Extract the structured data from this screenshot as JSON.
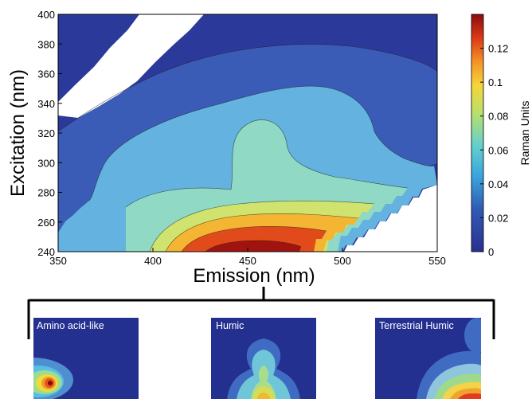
{
  "chart_data": [
    {
      "type": "heatmap",
      "xlabel": "Emission (nm)",
      "ylabel": "Excitation (nm)",
      "xlim": [
        350,
        550
      ],
      "ylim": [
        240,
        400
      ],
      "x_ticks": [
        350,
        400,
        450,
        500,
        550
      ],
      "y_ticks": [
        240,
        260,
        280,
        300,
        320,
        340,
        360,
        380,
        400
      ],
      "colorbar": {
        "label": "Raman Units",
        "range": [
          0,
          0.14
        ],
        "ticks": [
          0,
          0.02,
          0.04,
          0.06,
          0.08,
          0.1,
          0.12
        ],
        "tick_labels": [
          "0",
          "0.02",
          "0.04",
          "0.06",
          "0.08",
          "0.1",
          "0.12"
        ]
      },
      "contour_levels": [
        0.02,
        0.04,
        0.06,
        0.08,
        0.1,
        0.12
      ],
      "peak": {
        "emission": 445,
        "excitation": 240,
        "value": 0.135
      },
      "masked_regions": [
        "upper-left Rayleigh scatter band",
        "lower-right Raman/second-order band"
      ]
    },
    {
      "type": "heatmap",
      "panels": [
        {
          "label": "Amino acid-like",
          "peak_position": "lower-left",
          "colors": [
            "#24308f",
            "#55bfe5",
            "#eddc3c",
            "#e4541e",
            "#850a0a"
          ]
        },
        {
          "label": "Humic",
          "peak_position": "bottom-center",
          "colors": [
            "#24308f",
            "#6fc6d8",
            "#d7dc55",
            "#f0b930"
          ]
        },
        {
          "label": "Terrestrial Humic",
          "peak_position": "bottom-right",
          "colors": [
            "#24308f",
            "#8fc5dd",
            "#9ed98c",
            "#f0a231",
            "#e43a1d"
          ]
        }
      ]
    }
  ],
  "colors": {
    "background": "#ffffff",
    "c0": "#2b3a9a",
    "c1": "#3b5cb6",
    "c2": "#63b2df",
    "c3": "#8fd9c5",
    "c4": "#cfe36e",
    "c5": "#f4b532",
    "c6": "#e14b1c",
    "c7": "#a0130f",
    "line": "#000000"
  }
}
